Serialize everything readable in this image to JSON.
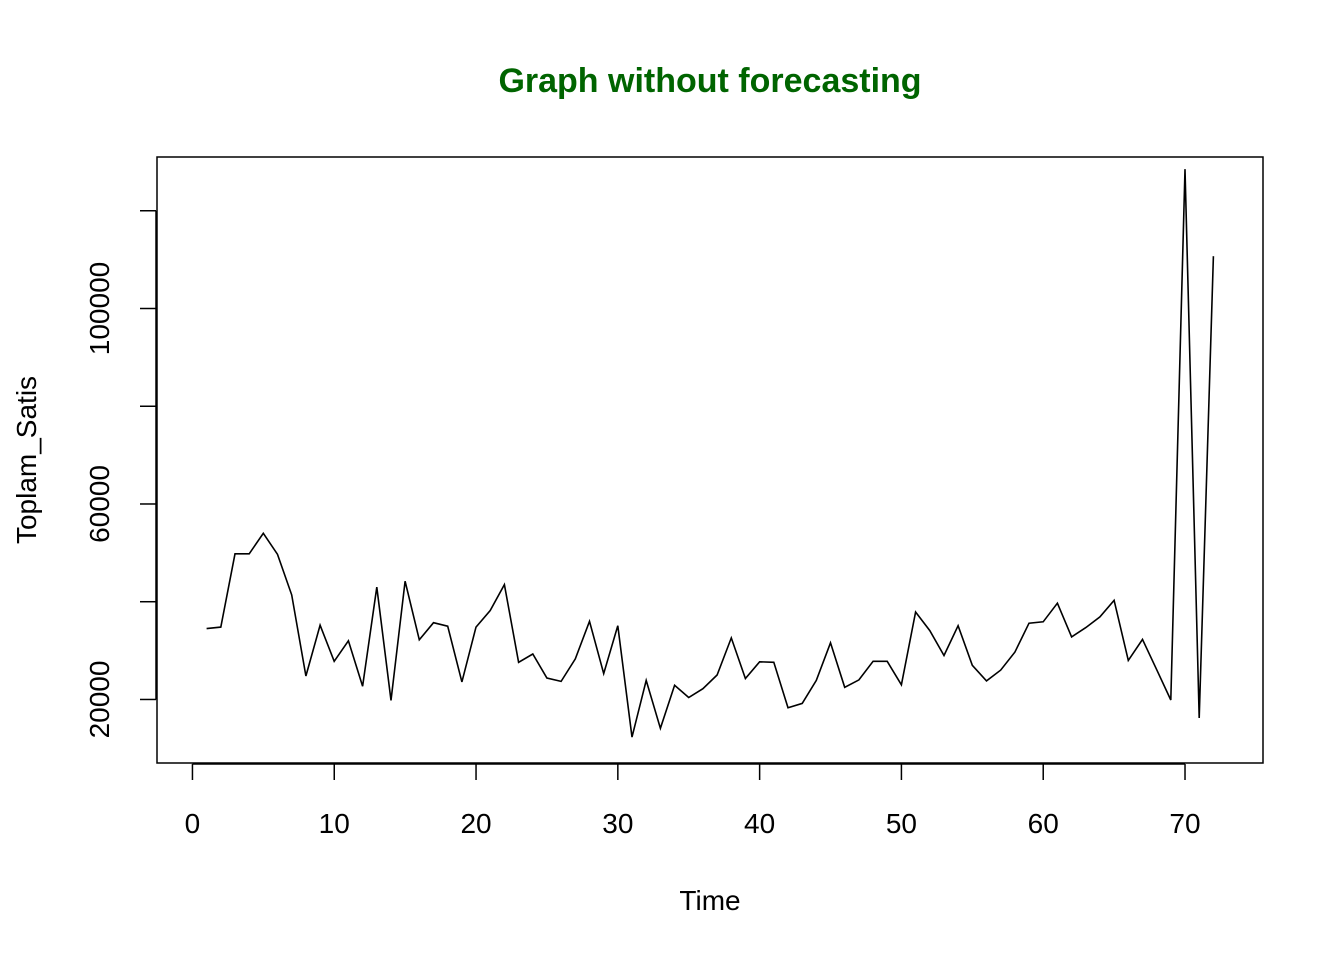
{
  "chart_data": {
    "type": "line",
    "title": "Graph without forecasting",
    "title_color": "#006400",
    "xlabel": "Time",
    "ylabel": "Toplam_Satis",
    "line_color": "#000000",
    "xlim": [
      -2.5,
      75.5
    ],
    "ylim": [
      7000,
      131000
    ],
    "x_ticks": [
      0,
      10,
      20,
      30,
      40,
      50,
      60,
      70
    ],
    "y_ticks": [
      20000,
      40000,
      60000,
      80000,
      100000,
      120000
    ],
    "y_tick_labels": [
      "20000",
      "",
      "60000",
      "",
      "100000",
      ""
    ],
    "x": [
      1,
      2,
      3,
      4,
      5,
      6,
      7,
      8,
      9,
      10,
      11,
      12,
      13,
      14,
      15,
      16,
      17,
      18,
      19,
      20,
      21,
      22,
      23,
      24,
      25,
      26,
      27,
      28,
      29,
      30,
      31,
      32,
      33,
      34,
      35,
      36,
      37,
      38,
      39,
      40,
      41,
      42,
      43,
      44,
      45,
      46,
      47,
      48,
      49,
      50,
      51,
      52,
      53,
      54,
      55,
      56,
      57,
      58,
      59,
      60,
      61,
      62,
      63,
      64,
      65,
      66,
      67,
      68,
      69,
      70,
      71,
      72
    ],
    "y": [
      34500,
      34800,
      49800,
      49800,
      54000,
      49700,
      41400,
      24800,
      35200,
      27800,
      32000,
      22700,
      43000,
      19800,
      44200,
      32200,
      35700,
      35000,
      23600,
      34800,
      38200,
      43500,
      27600,
      29300,
      24400,
      23700,
      28300,
      36000,
      25300,
      35100,
      12300,
      23900,
      14100,
      22900,
      20400,
      22200,
      25000,
      32600,
      24300,
      27700,
      27600,
      18300,
      19200,
      23900,
      31600,
      22500,
      24000,
      27800,
      27800,
      23000,
      37900,
      34100,
      29000,
      35100,
      27000,
      23800,
      26000,
      29700,
      35600,
      35900,
      39700,
      32800,
      34700,
      36900,
      40300,
      28000,
      32300,
      26100,
      19900,
      128500,
      16200,
      110700
    ]
  }
}
